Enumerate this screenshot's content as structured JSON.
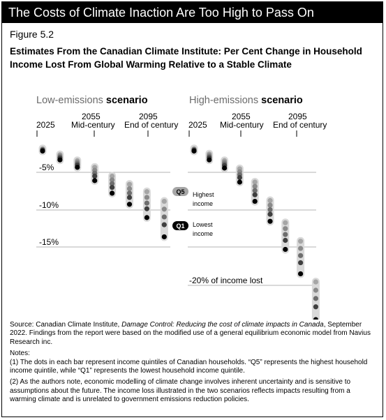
{
  "banner": "The Costs of Climate Inaction Are Too High to Pass On",
  "figure_label": "Figure 5.2",
  "figure_title": "Estimates From the Canadian Climate Institute: Per Cent Change in Household Income Lost From Global Warming Relative to a Stable Climate",
  "colors": {
    "gridline": "#b3b3b3",
    "bar": "#d9d9d9",
    "q1": "#000000",
    "q5": "#a6a6a6",
    "banner_bg": "#000000"
  },
  "chart_data": {
    "type": "scatter",
    "y_unit": "% change in household income",
    "ylim": [
      -24,
      0
    ],
    "gridlines": [
      -5,
      -10,
      -15,
      -20
    ],
    "panels": [
      {
        "title_light": "Low-emissions",
        "title_bold": "scenario",
        "year_labels": [
          {
            "year": "2025",
            "sub": ""
          },
          {
            "year": "2055",
            "sub": "Mid-century"
          },
          {
            "year": "2095",
            "sub": "End of century"
          }
        ],
        "tick_labels": [
          "-5%",
          "-10%",
          "-15%"
        ],
        "points": [
          {
            "q5": -0.5,
            "q1": -0.8
          },
          {
            "q5": -1.3,
            "q1": -2.0
          },
          {
            "q5": -2.1,
            "q1": -3.0
          },
          {
            "q5": -3.0,
            "q1": -4.8
          },
          {
            "q5": -4.2,
            "q1": -6.5
          },
          {
            "q5": -5.3,
            "q1": -8.0
          },
          {
            "q5": -6.3,
            "q1": -9.8
          },
          {
            "q5": -7.6,
            "q1": -12.4
          }
        ],
        "legend": [
          {
            "key": "Q5",
            "line1": "Highest",
            "line2": "income"
          },
          {
            "key": "Q1",
            "line1": "Lowest",
            "line2": "income"
          }
        ]
      },
      {
        "title_light": "High-emissions",
        "title_bold": "scenario",
        "year_labels": [
          {
            "year": "2025",
            "sub": ""
          },
          {
            "year": "2055",
            "sub": "Mid-century"
          },
          {
            "year": "2095",
            "sub": "End of century"
          }
        ],
        "tick_labels": [
          "-20% of income lost"
        ],
        "points": [
          {
            "q5": -0.5,
            "q1": -0.8
          },
          {
            "q5": -1.2,
            "q1": -2.0
          },
          {
            "q5": -2.1,
            "q1": -3.1
          },
          {
            "q5": -3.2,
            "q1": -5.0
          },
          {
            "q5": -5.0,
            "q1": -7.6
          },
          {
            "q5": -7.5,
            "q1": -10.3
          },
          {
            "q5": -10.5,
            "q1": -14.1
          },
          {
            "q5": -13.0,
            "q1": -17.4
          },
          {
            "q5": -18.5,
            "q1": -23.6
          }
        ]
      }
    ]
  },
  "source": {
    "prefix": "Source: Canadian Climate Institute, ",
    "title": "Damage Control: Reducing the cost of climate impacts in Canada",
    "suffix": ", September 2022. Findings from the report were based on the modified use of a general equilibrium economic model from Navius Research inc.",
    "notes_label": "Notes:",
    "note1": "(1) The dots in each bar represent income quintiles of Canadian households. “Q5” represents the highest household income quintile, while “Q1” represents the lowest household income quintile.",
    "note2": "(2) As the authors note, economic modelling of climate change involves inherent uncertainty and is sensitive to assumptions about the future. The income loss illustrated in the two scenarios reflects impacts resulting from a warming climate and is unrelated to government emissions reduction policies."
  }
}
